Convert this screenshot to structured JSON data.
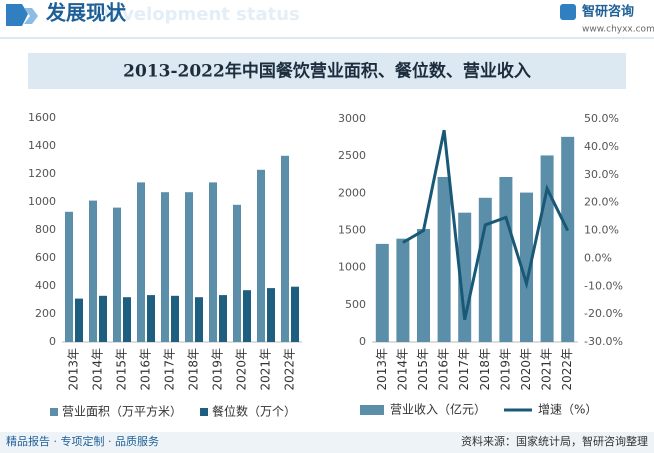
{
  "header": {
    "title": "发展现状",
    "subtitle": "Development status",
    "brand": "智研咨询",
    "url": "www.chyxx.com"
  },
  "banner": {
    "title": "2013-2022年中国餐饮营业面积、餐位数、营业收入"
  },
  "chart_data": [
    {
      "type": "bar",
      "categories": [
        "2013年",
        "2014年",
        "2015年",
        "2016年",
        "2017年",
        "2018年",
        "2019年",
        "2020年",
        "2021年",
        "2022年"
      ],
      "series": [
        {
          "name": "营业面积（万平方米）",
          "color": "#5b8ea8",
          "values": [
            930,
            1010,
            960,
            1140,
            1070,
            1070,
            1140,
            980,
            1230,
            1330
          ]
        },
        {
          "name": "餐位数（万个）",
          "color": "#1e5f80",
          "values": [
            310,
            330,
            320,
            335,
            330,
            320,
            335,
            370,
            385,
            395
          ]
        }
      ],
      "ylim": [
        0,
        1600
      ],
      "yticks": [
        0,
        200,
        400,
        600,
        800,
        1000,
        1200,
        1400,
        1600
      ]
    },
    {
      "type": "bar_line",
      "categories": [
        "2013年",
        "2014年",
        "2015年",
        "2016年",
        "2017年",
        "2018年",
        "2019年",
        "2020年",
        "2021年",
        "2022年"
      ],
      "series": [
        {
          "name": "营业收入（亿元）",
          "color": "#5b8ea8",
          "values": [
            1320,
            1390,
            1520,
            2220,
            1740,
            1940,
            2220,
            2010,
            2510,
            2760
          ]
        },
        {
          "name": "增速（%）",
          "color": "#1a5877",
          "axis": "y2",
          "values": [
            null,
            5.7,
            10,
            46,
            -22,
            12,
            14.7,
            -9,
            25,
            10
          ]
        }
      ],
      "ylim": [
        0,
        3000
      ],
      "yticks": [
        0,
        500,
        1000,
        1500,
        2000,
        2500,
        3000
      ],
      "y2lim": [
        -30,
        50
      ],
      "y2ticks": [
        {
          "value": -30,
          "label": "-30.0%"
        },
        {
          "value": -20,
          "label": "-20.0%"
        },
        {
          "value": -10,
          "label": "-10.0%"
        },
        {
          "value": 0,
          "label": "0.0%"
        },
        {
          "value": 10,
          "label": "10.0%"
        },
        {
          "value": 20,
          "label": "20.0%"
        },
        {
          "value": 30,
          "label": "30.0%"
        },
        {
          "value": 40,
          "label": "40.0%"
        },
        {
          "value": 50,
          "label": "50.0%"
        }
      ]
    }
  ],
  "footer": {
    "left": "精品报告 · 专项定制 · 品质服务",
    "source": "资料来源：国家统计局，智研咨询整理"
  }
}
